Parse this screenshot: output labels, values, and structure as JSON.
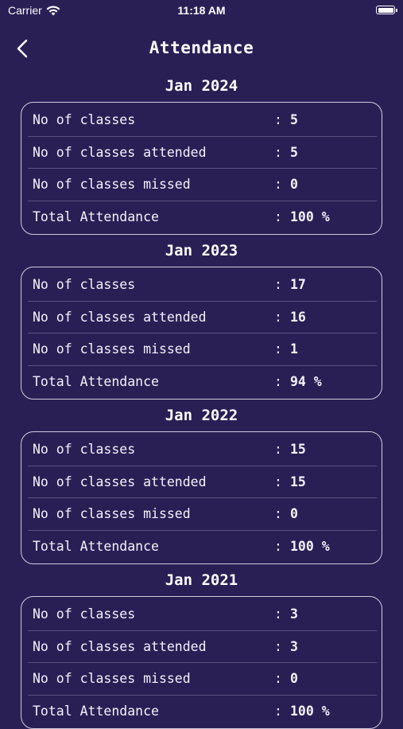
{
  "status_bar": {
    "carrier": "Carrier",
    "time": "11:18 AM"
  },
  "header": {
    "title": "Attendance"
  },
  "labels": {
    "classes": "No of classes",
    "attended": "No of classes attended",
    "missed": "No of classes missed",
    "total": "Total Attendance",
    "colon": ":"
  },
  "sections": [
    {
      "title": "Jan 2024",
      "classes": "5",
      "attended": "5",
      "missed": "0",
      "total": "100 %"
    },
    {
      "title": "Jan 2023",
      "classes": "17",
      "attended": "16",
      "missed": "1",
      "total": "94 %"
    },
    {
      "title": "Jan 2022",
      "classes": "15",
      "attended": "15",
      "missed": "0",
      "total": "100 %"
    },
    {
      "title": "Jan 2021",
      "classes": "3",
      "attended": "3",
      "missed": "0",
      "total": "100 %"
    }
  ],
  "colors": {
    "background": "#2a1f55",
    "card_border": "#cfcadf",
    "divider": "#5a5180",
    "text": "#ffffff"
  },
  "icons": {
    "wifi": "wifi-icon",
    "battery": "battery-icon",
    "back": "chevron-left-icon"
  }
}
